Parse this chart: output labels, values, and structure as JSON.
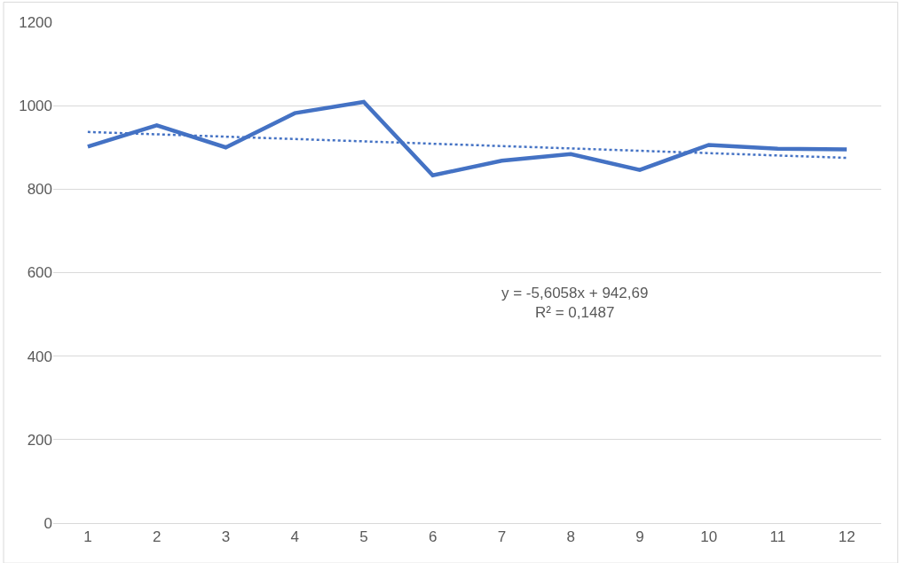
{
  "chart_data": {
    "type": "line",
    "x": [
      1,
      2,
      3,
      4,
      5,
      6,
      7,
      8,
      9,
      10,
      11,
      12
    ],
    "series": [
      {
        "color": "#4472c4",
        "values": [
          902,
          953,
          900,
          982,
          1009,
          833,
          868,
          884,
          846,
          906,
          897,
          895
        ],
        "line_style": "solid"
      },
      {
        "type": "line",
        "color": "#4472c4",
        "x": [
          1,
          12
        ],
        "values": [
          937,
          875
        ],
        "line_style": "dotted"
      }
    ],
    "xlim": [
      0.5,
      12.5
    ],
    "xticks": [
      1,
      2,
      3,
      4,
      5,
      6,
      7,
      8,
      9,
      10,
      11,
      12
    ],
    "ylim": [
      0,
      1200
    ],
    "yticks": [
      0,
      200,
      400,
      600,
      800,
      1000,
      1200
    ],
    "grid": "y",
    "marker": "none",
    "annotations": [
      "y = -5,6058x + 942,69\nR² = 0,1487"
    ]
  }
}
